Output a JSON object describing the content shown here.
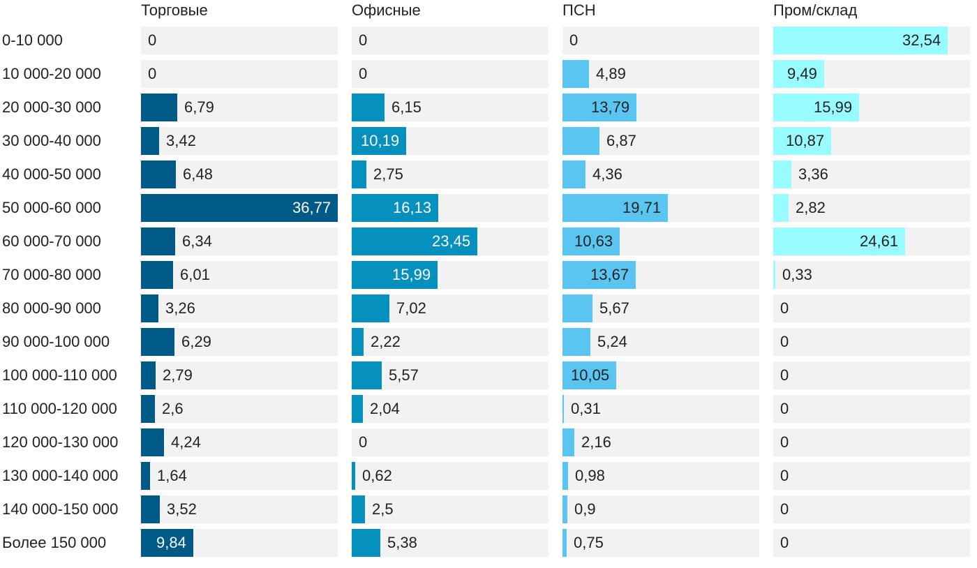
{
  "chart_data": {
    "type": "bar",
    "orientation": "horizontal",
    "layout": "small-multiples",
    "categories": [
      "0-10 000",
      "10 000-20 000",
      "20 000-30 000",
      "30 000-40 000",
      "40 000-50 000",
      "50 000-60 000",
      "60 000-70 000",
      "70 000-80 000",
      "80 000-90 000",
      "90 000-100 000",
      "100 000-110 000",
      "110 000-120 000",
      "120 000-130 000",
      "130 000-140 000",
      "140 000-150 000",
      "Более 150 000"
    ],
    "series": [
      {
        "name": "Торговые",
        "color": "#005a87",
        "labels": [
          "0",
          "0",
          "6,79",
          "3,42",
          "6,48",
          "36,77",
          "6,34",
          "6,01",
          "3,26",
          "6,29",
          "2,79",
          "2,6",
          "4,24",
          "1,64",
          "3,52",
          "9,84"
        ],
        "values": [
          0,
          0,
          6.79,
          3.42,
          6.48,
          36.77,
          6.34,
          6.01,
          3.26,
          6.29,
          2.79,
          2.6,
          4.24,
          1.64,
          3.52,
          9.84
        ]
      },
      {
        "name": "Офисные",
        "color": "#0590be",
        "labels": [
          "0",
          "0",
          "6,15",
          "10,19",
          "2,75",
          "16,13",
          "23,45",
          "15,99",
          "7,02",
          "2,22",
          "5,57",
          "2,04",
          "0",
          "0,62",
          "2,5",
          "5,38"
        ],
        "values": [
          0,
          0,
          6.15,
          10.19,
          2.75,
          16.13,
          23.45,
          15.99,
          7.02,
          2.22,
          5.57,
          2.04,
          0,
          0.62,
          2.5,
          5.38
        ]
      },
      {
        "name": "ПСН",
        "color": "#5bc5f2",
        "labels": [
          "0",
          "4,89",
          "13,79",
          "6,87",
          "4,36",
          "19,71",
          "10,63",
          "13,67",
          "5,67",
          "5,24",
          "10,05",
          "0,31",
          "2,16",
          "0,98",
          "0,9",
          "0,75"
        ],
        "values": [
          0,
          4.89,
          13.79,
          6.87,
          4.36,
          19.71,
          10.63,
          13.67,
          5.67,
          5.24,
          10.05,
          0.31,
          2.16,
          0.98,
          0.9,
          0.75
        ]
      },
      {
        "name": "Пром/склад",
        "color": "#98fbff",
        "labels": [
          "32,54",
          "9,49",
          "15,99",
          "10,87",
          "3,36",
          "2,82",
          "24,61",
          "0,33",
          "0",
          "0",
          "0",
          "0",
          "0",
          "0",
          "0",
          "0"
        ],
        "values": [
          32.54,
          9.49,
          15.99,
          10.87,
          3.36,
          2.82,
          24.61,
          0.33,
          0,
          0,
          0,
          0,
          0,
          0,
          0,
          0
        ]
      }
    ],
    "title": "",
    "xlabel": "",
    "ylabel": "",
    "grid": false,
    "legend": "none"
  }
}
